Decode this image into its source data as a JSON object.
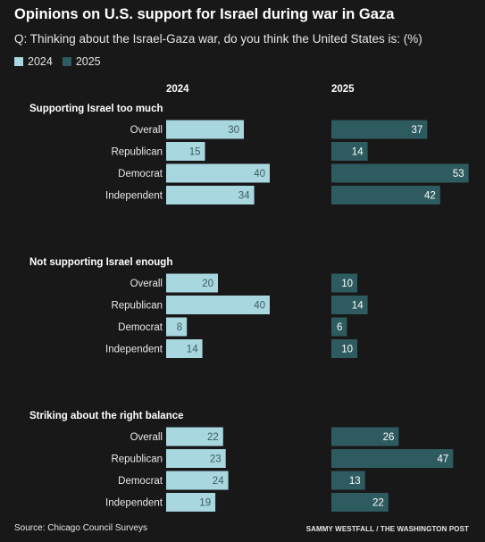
{
  "title": "Opinions on U.S. support for Israel during war in Gaza",
  "subtitle": "Q: Thinking about the Israel-Gaza war, do you think the United States is: (%)",
  "legend": [
    {
      "label": "2024",
      "color": "#a8d7df"
    },
    {
      "label": "2025",
      "color": "#2e5b5f"
    }
  ],
  "column_headers": [
    "2024",
    "2025"
  ],
  "source": "Source: Chicago Council Surveys",
  "credit": "SAMMY WESTFALL / THE WASHINGTON POST",
  "chart_data": {
    "type": "bar",
    "orientation": "horizontal",
    "categories": [
      "Overall",
      "Republican",
      "Democrat",
      "Independent"
    ],
    "series_colors": {
      "2024": "#a8d7df",
      "2025": "#2e5b5f"
    },
    "groups": [
      {
        "title": "Supporting Israel too much",
        "series": [
          {
            "name": "2024",
            "values": [
              30,
              15,
              40,
              34
            ]
          },
          {
            "name": "2025",
            "values": [
              37,
              14,
              53,
              42
            ]
          }
        ]
      },
      {
        "title": "Not supporting Israel enough",
        "series": [
          {
            "name": "2024",
            "values": [
              20,
              40,
              8,
              14
            ]
          },
          {
            "name": "2025",
            "values": [
              10,
              14,
              6,
              10
            ]
          }
        ]
      },
      {
        "title": "Striking about the right balance",
        "series": [
          {
            "name": "2024",
            "values": [
              22,
              23,
              24,
              19
            ]
          },
          {
            "name": "2025",
            "values": [
              26,
              47,
              13,
              22
            ]
          }
        ]
      }
    ]
  }
}
